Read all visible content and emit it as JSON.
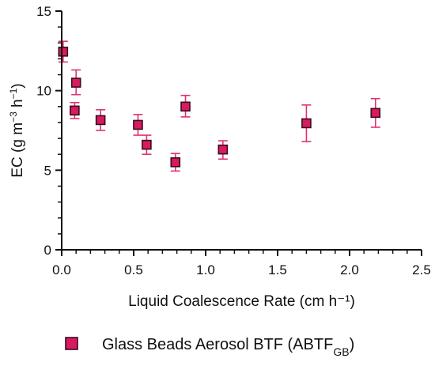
{
  "chart_data": {
    "type": "scatter",
    "xlabel": "Liquid Coalescence Rate (cm h⁻¹)",
    "ylabel": {
      "base": "EC (g m",
      "sup1": "−3",
      "mid": " h",
      "sup2": "−1",
      "end": ")"
    },
    "xlim": [
      0,
      2.5
    ],
    "ylim": [
      0,
      15
    ],
    "x_ticks": [
      "0.0",
      "0.5",
      "1.0",
      "1.5",
      "2.0",
      "2.5"
    ],
    "y_ticks": [
      "0",
      "5",
      "10",
      "15"
    ],
    "grid": false,
    "legend_placement": "bottom",
    "series": [
      {
        "name": "Glass Beads Aerosol BTF (ABTF",
        "name_subscript": "GB",
        "name_suffix": ")",
        "marker": "square",
        "fill_color": "#d81b60",
        "edge_color": "#3a0a1f",
        "error_color": "#e0326f",
        "points": [
          {
            "x": 0.01,
            "y": 12.45,
            "err_low": 0.65,
            "err_high": 0.65
          },
          {
            "x": 0.09,
            "y": 8.75,
            "err_low": 0.5,
            "err_high": 0.5
          },
          {
            "x": 0.1,
            "y": 10.5,
            "err_low": 0.75,
            "err_high": 0.8
          },
          {
            "x": 0.27,
            "y": 8.15,
            "err_low": 0.65,
            "err_high": 0.65
          },
          {
            "x": 0.53,
            "y": 7.85,
            "err_low": 0.65,
            "err_high": 0.65
          },
          {
            "x": 0.59,
            "y": 6.6,
            "err_low": 0.6,
            "err_high": 0.6
          },
          {
            "x": 0.79,
            "y": 5.5,
            "err_low": 0.55,
            "err_high": 0.55
          },
          {
            "x": 0.86,
            "y": 9.0,
            "err_low": 0.65,
            "err_high": 0.7
          },
          {
            "x": 1.12,
            "y": 6.3,
            "err_low": 0.6,
            "err_high": 0.55
          },
          {
            "x": 1.7,
            "y": 7.95,
            "err_low": 1.15,
            "err_high": 1.15
          },
          {
            "x": 2.18,
            "y": 8.6,
            "err_low": 0.9,
            "err_high": 0.9
          }
        ]
      }
    ]
  }
}
